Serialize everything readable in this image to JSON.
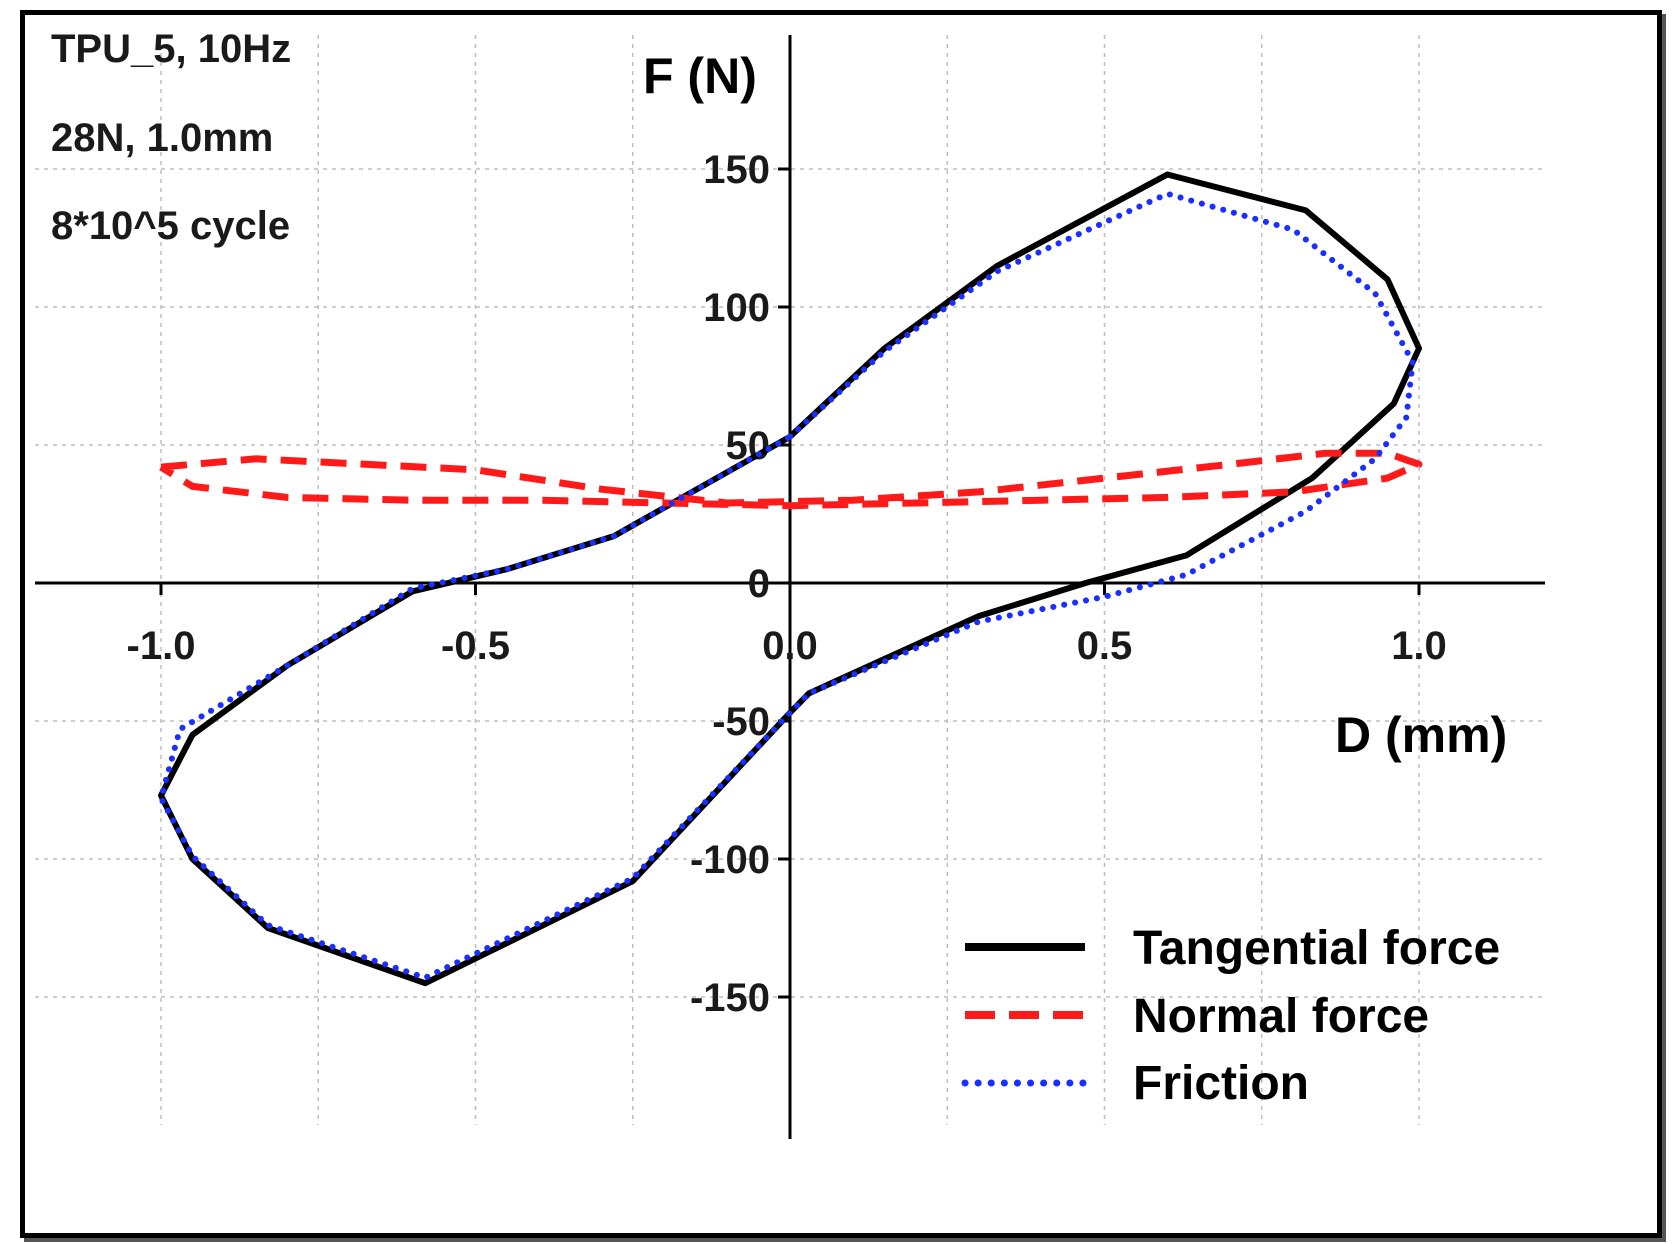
{
  "chart_data": {
    "type": "line",
    "annotations": [
      "TPU_5, 10Hz",
      "28N, 1.0mm",
      "8*10^5 cycle"
    ],
    "xlabel": "D (mm)",
    "ylabel": "F (N)",
    "xlim": [
      -1.2,
      1.2
    ],
    "ylim": [
      -200,
      200
    ],
    "xticks": [
      -1.0,
      -0.5,
      0.0,
      0.5,
      1.0
    ],
    "xtick_labels": [
      "-1.0",
      "-0.5",
      "0.0",
      "0.5",
      "1.0"
    ],
    "yticks": [
      -150,
      -100,
      -50,
      0,
      50,
      100,
      150
    ],
    "ytick_labels": [
      "-150",
      "-100",
      "-50",
      "0",
      "50",
      "100",
      "150"
    ],
    "grid": true,
    "legend_position": "bottom-right",
    "series": [
      {
        "name": "Tangential force",
        "color": "#000000",
        "style": "solid",
        "x": [
          0.0,
          0.15,
          0.33,
          0.6,
          0.82,
          0.95,
          1.0,
          0.96,
          0.83,
          0.63,
          0.47,
          0.3,
          0.03,
          0.0,
          -0.25,
          -0.58,
          -0.83,
          -0.95,
          -1.0,
          -0.95,
          -0.8,
          -0.6,
          -0.45,
          -0.28,
          0.0
        ],
        "y": [
          53,
          85,
          115,
          148,
          135,
          110,
          85,
          65,
          38,
          10,
          0,
          -12,
          -40,
          -47,
          -108,
          -145,
          -125,
          -100,
          -77,
          -55,
          -30,
          -3,
          5,
          17,
          53
        ]
      },
      {
        "name": "Normal force",
        "color": "#ff1a1a",
        "style": "dashed",
        "x": [
          -1.0,
          -0.85,
          -0.5,
          -0.3,
          -0.1,
          0.1,
          0.3,
          0.5,
          0.7,
          0.85,
          0.95,
          1.0,
          0.95,
          0.8,
          0.6,
          0.4,
          0.2,
          0.0,
          -0.2,
          -0.4,
          -0.6,
          -0.8,
          -0.95,
          -1.0
        ],
        "y": [
          42,
          45,
          41,
          34,
          29,
          30,
          33,
          38,
          43,
          47,
          47,
          43,
          38,
          33,
          31,
          30,
          29,
          28,
          29,
          30,
          30,
          31,
          35,
          42
        ]
      },
      {
        "name": "Friction",
        "color": "#1a2fff",
        "style": "dotted",
        "x": [
          0.0,
          0.15,
          0.33,
          0.6,
          0.8,
          0.93,
          0.99,
          0.98,
          0.93,
          0.82,
          0.63,
          0.5,
          0.3,
          0.03,
          0.0,
          -0.25,
          -0.58,
          -0.83,
          -0.95,
          -1.0,
          -0.97,
          -0.8,
          -0.6,
          -0.45,
          -0.28,
          0.0
        ],
        "y": [
          53,
          84,
          113,
          141,
          128,
          105,
          80,
          60,
          45,
          26,
          3,
          -5,
          -14,
          -40,
          -47,
          -107,
          -143,
          -124,
          -99,
          -78,
          -53,
          -30,
          -2,
          5,
          17,
          53
        ]
      }
    ]
  }
}
